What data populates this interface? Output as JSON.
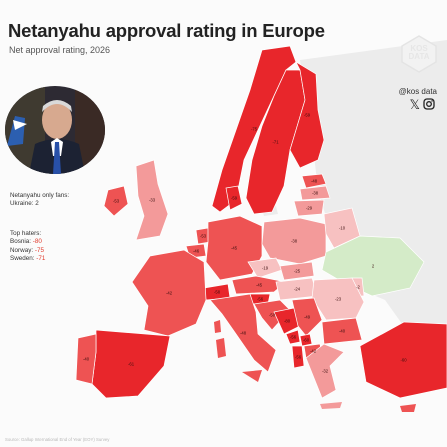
{
  "title": "Netanyahu approval rating in Europe",
  "subtitle": "Net approval rating, 2026",
  "brand": {
    "handle": "@kos data",
    "logo_text": "KOS DATA",
    "social_icons": [
      "x-icon",
      "instagram-icon"
    ]
  },
  "fans": {
    "heading": "Netanyahu only fans:",
    "items": [
      {
        "name": "Ukraine",
        "value": "2"
      }
    ]
  },
  "haters": {
    "heading": "Top haters:",
    "items": [
      {
        "name": "Bosnia",
        "value": "-80"
      },
      {
        "name": "Norway",
        "value": "-75"
      },
      {
        "name": "Sweden",
        "value": "-71"
      }
    ]
  },
  "source": "Source: Gallup International End of Year (EOY) Survey",
  "colors": {
    "strong": "#e8262b",
    "medium": "#ee5353",
    "light": "#f39a9a",
    "pale": "#f7c1c1",
    "positive": "#d4ebc8",
    "nodata": "#e6e6e6",
    "handle_icons": "#222222"
  },
  "countries": [
    {
      "id": "norway",
      "name": "Norway",
      "value": -75,
      "label": "-75"
    },
    {
      "id": "sweden",
      "name": "Sweden",
      "value": -71,
      "label": "-71"
    },
    {
      "id": "finland",
      "name": "Finland",
      "value": -59,
      "label": "-59"
    },
    {
      "id": "estonia",
      "name": "Estonia",
      "value": -48,
      "label": "-48"
    },
    {
      "id": "latvia",
      "name": "Latvia",
      "value": -38,
      "label": "-38"
    },
    {
      "id": "lithuania",
      "name": "Lithuania",
      "value": -29,
      "label": "-29"
    },
    {
      "id": "denmark",
      "name": "Denmark",
      "value": -59,
      "label": "-59"
    },
    {
      "id": "ireland",
      "name": "Ireland",
      "value": -53,
      "label": "-53"
    },
    {
      "id": "uk",
      "name": "United Kingdom",
      "value": -33,
      "label": "-33"
    },
    {
      "id": "netherlands",
      "name": "Netherlands",
      "value": -53,
      "label": "-53"
    },
    {
      "id": "belgium",
      "name": "Belgium",
      "value": -46,
      "label": "-46"
    },
    {
      "id": "germany",
      "name": "Germany",
      "value": -45,
      "label": "-45"
    },
    {
      "id": "poland",
      "name": "Poland",
      "value": -38,
      "label": "-38"
    },
    {
      "id": "belarus",
      "name": "Belarus",
      "value": -10,
      "label": "-10"
    },
    {
      "id": "ukraine",
      "name": "Ukraine",
      "value": 2,
      "label": "2"
    },
    {
      "id": "czechia",
      "name": "Czechia",
      "value": -19,
      "label": "-19"
    },
    {
      "id": "slovakia",
      "name": "Slovakia",
      "value": -25,
      "label": "-25"
    },
    {
      "id": "austria",
      "name": "Austria",
      "value": -45,
      "label": "-45"
    },
    {
      "id": "switzerland",
      "name": "Switzerland",
      "value": -58,
      "label": "-58"
    },
    {
      "id": "hungary",
      "name": "Hungary",
      "value": -24,
      "label": "-24"
    },
    {
      "id": "moldova",
      "name": "Moldova",
      "value": -2,
      "label": "-2"
    },
    {
      "id": "romania",
      "name": "Romania",
      "value": -23,
      "label": "-23"
    },
    {
      "id": "france",
      "name": "France",
      "value": -42,
      "label": "-42"
    },
    {
      "id": "slovenia",
      "name": "Slovenia",
      "value": -56,
      "label": "-56"
    },
    {
      "id": "croatia",
      "name": "Croatia",
      "value": -50,
      "label": "-50"
    },
    {
      "id": "bosnia",
      "name": "Bosnia",
      "value": -80,
      "label": "-80"
    },
    {
      "id": "serbia",
      "name": "Serbia",
      "value": -49,
      "label": "-49"
    },
    {
      "id": "montenegro",
      "name": "Montenegro",
      "value": -56,
      "label": "-56"
    },
    {
      "id": "kosovo",
      "name": "Kosovo",
      "value": -60,
      "label": "-60"
    },
    {
      "id": "albania",
      "name": "Albania",
      "value": -56,
      "label": "-56"
    },
    {
      "id": "macedonia",
      "name": "North Macedonia",
      "value": -42,
      "label": "-42"
    },
    {
      "id": "bulgaria",
      "name": "Bulgaria",
      "value": -40,
      "label": "-40"
    },
    {
      "id": "greece",
      "name": "Greece",
      "value": -32,
      "label": "-32"
    },
    {
      "id": "italy",
      "name": "Italy",
      "value": -48,
      "label": "-48"
    },
    {
      "id": "spain",
      "name": "Spain",
      "value": -61,
      "label": "-61"
    },
    {
      "id": "portugal",
      "name": "Portugal",
      "value": -40,
      "label": "-40"
    },
    {
      "id": "turkey",
      "name": "Turkey",
      "value": -60,
      "label": "-60"
    }
  ]
}
